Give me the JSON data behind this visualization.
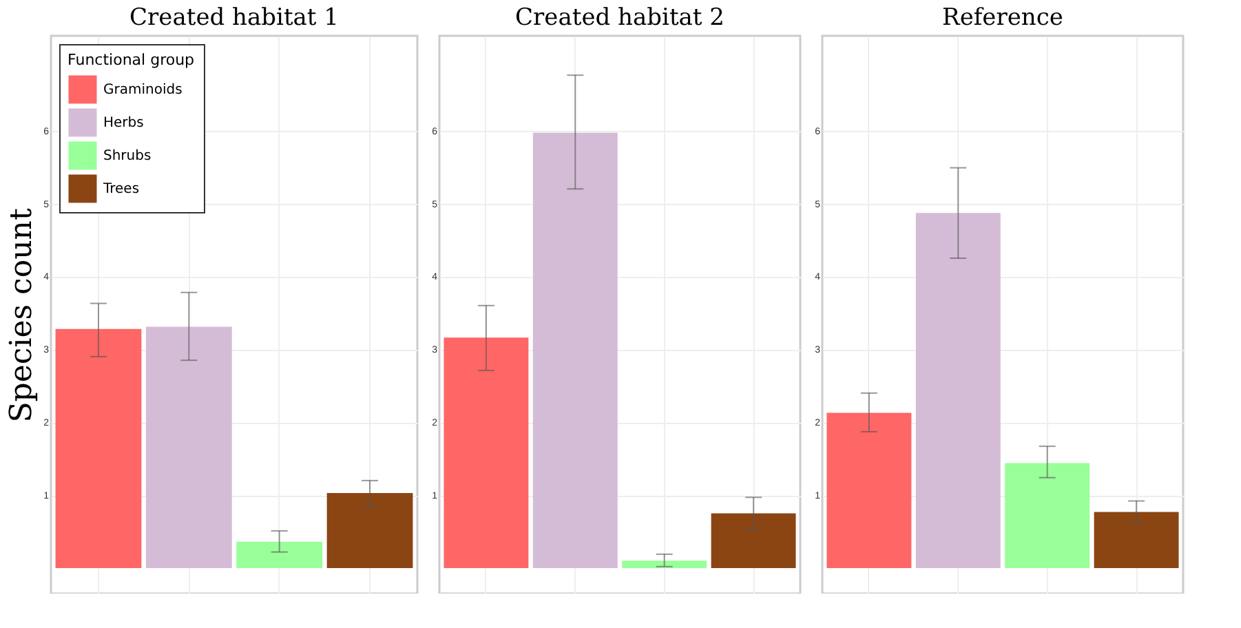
{
  "chart_data": [
    {
      "type": "bar",
      "title": "Created habitat 1",
      "ylabel": "Species count",
      "legend_title": "Functional group",
      "categories": [
        null
      ],
      "ylim": [
        -0.35,
        7.3
      ],
      "yticks": [
        1,
        2,
        3,
        4,
        5,
        6
      ],
      "grid": true,
      "legend": "top left",
      "tick_labels": "y",
      "series": [
        {
          "name": "Graminoids",
          "color": "#ff6666",
          "values": [
            3.28
          ],
          "errors": [
            [
              2.9,
              3.63
            ]
          ]
        },
        {
          "name": "Herbs",
          "color": "#d5bcd6",
          "values": [
            3.31
          ],
          "errors": [
            [
              2.85,
              3.78
            ]
          ]
        },
        {
          "name": "Shrubs",
          "color": "#99ff99",
          "values": [
            0.36
          ],
          "errors": [
            [
              0.22,
              0.51
            ]
          ]
        },
        {
          "name": "Trees",
          "color": "#8b4513",
          "values": [
            1.03
          ],
          "errors": [
            [
              0.84,
              1.2
            ]
          ]
        }
      ]
    },
    {
      "type": "bar",
      "title": "Created habitat 2",
      "categories": [
        null
      ],
      "ylim": [
        -0.35,
        7.3
      ],
      "yticks": [
        1,
        2,
        3,
        4,
        5,
        6
      ],
      "grid": true,
      "legend": false,
      "tick_labels": "y",
      "series": [
        {
          "color": "#ff6666",
          "values": [
            3.16
          ],
          "errors": [
            [
              2.71,
              3.6
            ]
          ]
        },
        {
          "color": "#d5bcd6",
          "values": [
            5.97
          ],
          "errors": [
            [
              5.2,
              6.76
            ]
          ]
        },
        {
          "color": "#99ff99",
          "values": [
            0.1
          ],
          "errors": [
            [
              0.02,
              0.19
            ]
          ]
        },
        {
          "color": "#8b4513",
          "values": [
            0.75
          ],
          "errors": [
            [
              0.54,
              0.97
            ]
          ]
        }
      ]
    },
    {
      "type": "bar",
      "title": "Reference",
      "categories": [
        null
      ],
      "ylim": [
        -0.35,
        7.3
      ],
      "yticks": [
        1,
        2,
        3,
        4,
        5,
        6
      ],
      "grid": true,
      "legend": false,
      "tick_labels": "y",
      "series": [
        {
          "color": "#ff6666",
          "values": [
            2.13
          ],
          "errors": [
            [
              1.87,
              2.4
            ]
          ]
        },
        {
          "color": "#d5bcd6",
          "values": [
            4.87
          ],
          "errors": [
            [
              4.25,
              5.49
            ]
          ]
        },
        {
          "color": "#99ff99",
          "values": [
            1.44
          ],
          "errors": [
            [
              1.24,
              1.67
            ]
          ]
        },
        {
          "color": "#8b4513",
          "values": [
            0.77
          ],
          "errors": [
            [
              0.62,
              0.92
            ]
          ]
        }
      ]
    }
  ]
}
